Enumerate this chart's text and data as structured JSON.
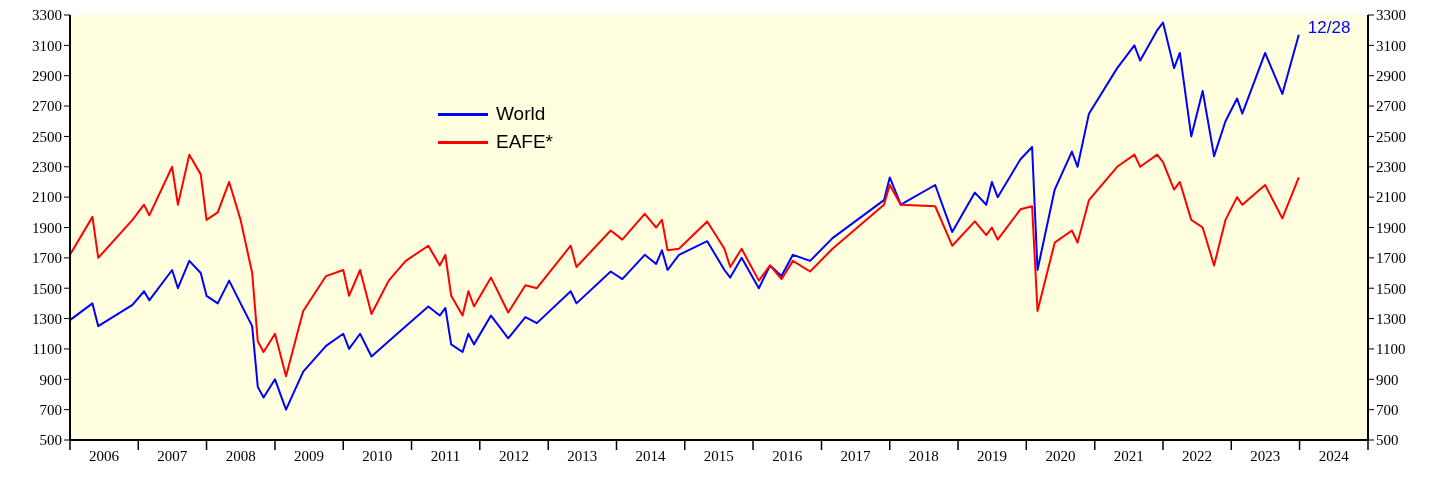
{
  "chart_data": {
    "type": "line",
    "x": [
      "2006-01",
      "2006-05",
      "2006-06",
      "2006-12",
      "2007-02",
      "2007-03",
      "2007-07",
      "2007-08",
      "2007-10",
      "2007-12",
      "2008-01",
      "2008-03",
      "2008-05",
      "2008-07",
      "2008-09",
      "2008-10",
      "2008-11",
      "2009-01",
      "2009-03",
      "2009-06",
      "2009-10",
      "2010-01",
      "2010-02",
      "2010-04",
      "2010-06",
      "2010-09",
      "2010-12",
      "2011-04",
      "2011-06",
      "2011-07",
      "2011-08",
      "2011-10",
      "2011-11",
      "2011-12",
      "2012-03",
      "2012-06",
      "2012-09",
      "2012-11",
      "2013-05",
      "2013-06",
      "2013-12",
      "2014-02",
      "2014-06",
      "2014-08",
      "2014-09",
      "2014-10",
      "2014-12",
      "2015-05",
      "2015-08",
      "2015-09",
      "2015-11",
      "2016-02",
      "2016-04",
      "2016-06",
      "2016-08",
      "2016-11",
      "2017-03",
      "2017-12",
      "2018-01",
      "2018-03",
      "2018-09",
      "2018-12",
      "2019-04",
      "2019-06",
      "2019-07",
      "2019-08",
      "2019-12",
      "2020-02",
      "2020-03",
      "2020-06",
      "2020-09",
      "2020-10",
      "2020-12",
      "2021-05",
      "2021-08",
      "2021-09",
      "2021-12",
      "2022-01",
      "2022-03",
      "2022-04",
      "2022-06",
      "2022-08",
      "2022-10",
      "2022-12",
      "2023-02",
      "2023-03",
      "2023-07",
      "2023-10",
      "2023-12-28"
    ],
    "series": [
      {
        "name": "World",
        "color": "#0000ff",
        "values": [
          1290,
          1400,
          1250,
          1390,
          1480,
          1420,
          1620,
          1500,
          1680,
          1600,
          1450,
          1400,
          1550,
          1400,
          1250,
          850,
          780,
          900,
          700,
          950,
          1120,
          1200,
          1100,
          1200,
          1050,
          1150,
          1250,
          1380,
          1320,
          1370,
          1130,
          1080,
          1200,
          1130,
          1320,
          1170,
          1310,
          1270,
          1480,
          1400,
          1610,
          1560,
          1720,
          1660,
          1750,
          1620,
          1720,
          1810,
          1620,
          1570,
          1700,
          1500,
          1650,
          1580,
          1720,
          1680,
          1830,
          2080,
          2230,
          2050,
          2180,
          1870,
          2130,
          2050,
          2200,
          2100,
          2350,
          2430,
          1620,
          2150,
          2400,
          2300,
          2650,
          2950,
          3100,
          3000,
          3200,
          3250,
          2950,
          3050,
          2500,
          2800,
          2370,
          2600,
          2750,
          2650,
          3050,
          2780,
          3170
        ]
      },
      {
        "name": "EAFE*",
        "color": "#ff0000",
        "values": [
          1720,
          1970,
          1700,
          1950,
          2050,
          1980,
          2300,
          2050,
          2380,
          2250,
          1950,
          2000,
          2200,
          1950,
          1600,
          1150,
          1080,
          1200,
          920,
          1350,
          1580,
          1620,
          1450,
          1620,
          1330,
          1550,
          1680,
          1780,
          1650,
          1720,
          1450,
          1320,
          1480,
          1380,
          1570,
          1340,
          1520,
          1500,
          1780,
          1640,
          1880,
          1820,
          1990,
          1900,
          1950,
          1750,
          1760,
          1940,
          1760,
          1640,
          1760,
          1550,
          1650,
          1560,
          1680,
          1610,
          1760,
          2050,
          2180,
          2050,
          2040,
          1780,
          1940,
          1850,
          1900,
          1820,
          2020,
          2040,
          1350,
          1800,
          1880,
          1800,
          2080,
          2300,
          2380,
          2300,
          2380,
          2330,
          2150,
          2200,
          1950,
          1900,
          1650,
          1950,
          2100,
          2050,
          2180,
          1960,
          2230
        ]
      }
    ],
    "annotations": [
      {
        "text": "12/28",
        "x": "2023-12-28",
        "y": 3170
      }
    ],
    "xlim": [
      "2006-01-01",
      "2025-01-01"
    ],
    "xticks": [
      {
        "value": "2006-01-01",
        "label": null
      },
      {
        "value": "2006-07-02",
        "label": "2006"
      },
      {
        "value": "2007-01-01",
        "label": null
      },
      {
        "value": "2007-07-02",
        "label": "2007"
      },
      {
        "value": "2008-01-01",
        "label": null
      },
      {
        "value": "2008-07-02",
        "label": "2008"
      },
      {
        "value": "2009-01-01",
        "label": null
      },
      {
        "value": "2009-07-02",
        "label": "2009"
      },
      {
        "value": "2010-01-01",
        "label": null
      },
      {
        "value": "2010-07-02",
        "label": "2010"
      },
      {
        "value": "2011-01-01",
        "label": null
      },
      {
        "value": "2011-07-02",
        "label": "2011"
      },
      {
        "value": "2012-01-01",
        "label": null
      },
      {
        "value": "2012-07-02",
        "label": "2012"
      },
      {
        "value": "2013-01-01",
        "label": null
      },
      {
        "value": "2013-07-02",
        "label": "2013"
      },
      {
        "value": "2014-01-01",
        "label": null
      },
      {
        "value": "2014-07-02",
        "label": "2014"
      },
      {
        "value": "2015-01-01",
        "label": null
      },
      {
        "value": "2015-07-02",
        "label": "2015"
      },
      {
        "value": "2016-01-01",
        "label": null
      },
      {
        "value": "2016-07-02",
        "label": "2016"
      },
      {
        "value": "2017-01-01",
        "label": null
      },
      {
        "value": "2017-07-02",
        "label": "2017"
      },
      {
        "value": "2018-01-01",
        "label": null
      },
      {
        "value": "2018-07-02",
        "label": "2018"
      },
      {
        "value": "2019-01-01",
        "label": null
      },
      {
        "value": "2019-07-02",
        "label": "2019"
      },
      {
        "value": "2020-01-01",
        "label": null
      },
      {
        "value": "2020-07-02",
        "label": "2020"
      },
      {
        "value": "2021-01-01",
        "label": null
      },
      {
        "value": "2021-07-02",
        "label": "2021"
      },
      {
        "value": "2022-01-01",
        "label": null
      },
      {
        "value": "2022-07-02",
        "label": "2022"
      },
      {
        "value": "2023-01-01",
        "label": null
      },
      {
        "value": "2023-07-02",
        "label": "2023"
      },
      {
        "value": "2024-01-01",
        "label": null
      },
      {
        "value": "2024-07-02",
        "label": "2024"
      },
      {
        "value": "2025-01-01",
        "label": null
      }
    ],
    "ylim": [
      500,
      3300
    ],
    "yticks": [
      500,
      700,
      900,
      1100,
      1300,
      1500,
      1700,
      1900,
      2100,
      2300,
      2500,
      2700,
      2900,
      3100,
      3300
    ],
    "y2lim": [
      500,
      3300
    ],
    "y2ticks": [
      500,
      700,
      900,
      1100,
      1300,
      1500,
      1700,
      1900,
      2100,
      2300,
      2500,
      2700,
      2900,
      3100,
      3300
    ],
    "legend": "top left",
    "grid": false,
    "marker": "none",
    "line_style": "solid"
  }
}
